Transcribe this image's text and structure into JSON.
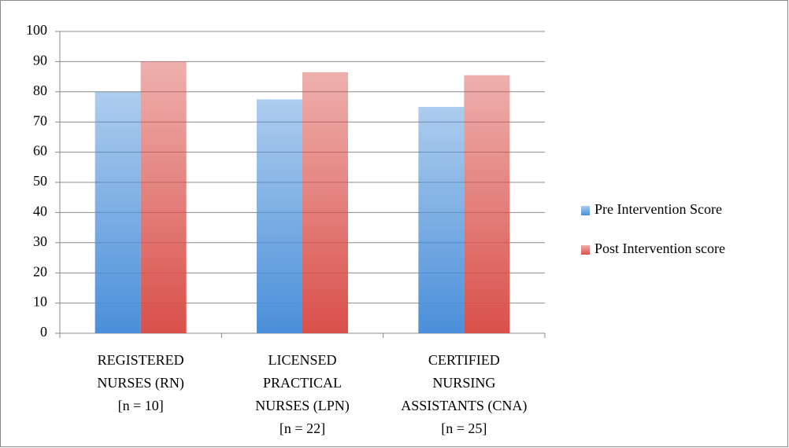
{
  "chart_data": {
    "type": "bar",
    "categories": [
      [
        "REGISTERED",
        "NURSES (RN)",
        "[n = 10]"
      ],
      [
        "LICENSED",
        "PRACTICAL",
        "NURSES (LPN)",
        "[n = 22]"
      ],
      [
        "CERTIFIED",
        "NURSING",
        "ASSISTANTS (CNA)",
        "[n = 25]"
      ]
    ],
    "series": [
      {
        "name": "Pre Intervention Score",
        "color": "#4a8fd9",
        "values": [
          80,
          77.5,
          75
        ]
      },
      {
        "name": "Post Intervention score",
        "color": "#d9504a",
        "values": [
          90,
          86.5,
          85.5
        ]
      }
    ],
    "ylim": [
      0,
      100
    ],
    "yticks": [
      0,
      10,
      20,
      30,
      40,
      50,
      60,
      70,
      80,
      90,
      100
    ],
    "grid": true,
    "legend": "right"
  }
}
